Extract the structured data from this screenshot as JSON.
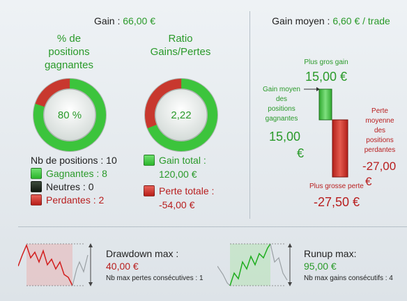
{
  "left": {
    "gain_label": "Gain : ",
    "gain_value": "66,00 €",
    "pct": {
      "title_1": "% de",
      "title_2": "positions",
      "title_3": "gagnantes",
      "value": "80 %",
      "fraction": 0.8
    },
    "ratio": {
      "title_1": "Ratio",
      "title_2": "Gains/Pertes",
      "value": "2,22",
      "fraction": 0.69
    },
    "nb_positions": "Nb de positions : 10",
    "gagnantes": "Gagnantes : 8",
    "neutres": "Neutres : 0",
    "perdantes": "Perdantes : 2",
    "gain_total_1": "Gain total :",
    "gain_total_2": "120,00 €",
    "perte_totale_1": "Perte totale :",
    "perte_totale_2": "-54,00 €"
  },
  "right": {
    "gain_moyen_label": "Gain moyen : ",
    "gain_moyen_value": "6,60 € / trade",
    "plus_gros_gain_label": "Plus gros gain",
    "plus_gros_gain_value": "15,00 €",
    "gain_moyen_pos_1": "Gain moyen",
    "gain_moyen_pos_2": "des",
    "gain_moyen_pos_3": "positions",
    "gain_moyen_pos_4": "gagnantes",
    "gain_moyen_pos_value_1": "15,00",
    "gain_moyen_pos_value_2": "€",
    "perte_moyenne_1": "Perte",
    "perte_moyenne_2": "moyenne",
    "perte_moyenne_3": "des",
    "perte_moyenne_4": "positions",
    "perte_moyenne_5": "perdantes",
    "perte_moyenne_value_1": "-27,00",
    "perte_moyenne_value_2": "€",
    "plus_grosse_perte_label": "Plus grosse perte",
    "plus_grosse_perte_value": "-27,50 €"
  },
  "bottom": {
    "drawdown_label": "Drawdown max :",
    "drawdown_value": "40,00 €",
    "drawdown_sub": "Nb max pertes consécutives : 1",
    "runup_label": "Runup max:",
    "runup_value": "95,00 €",
    "runup_sub": "Nb max gains consécutifs : 4"
  },
  "colors": {
    "green": "#2a9a2a",
    "red": "#b81e1e",
    "ring_green": "#3cc43c",
    "ring_red": "#c8382e"
  }
}
